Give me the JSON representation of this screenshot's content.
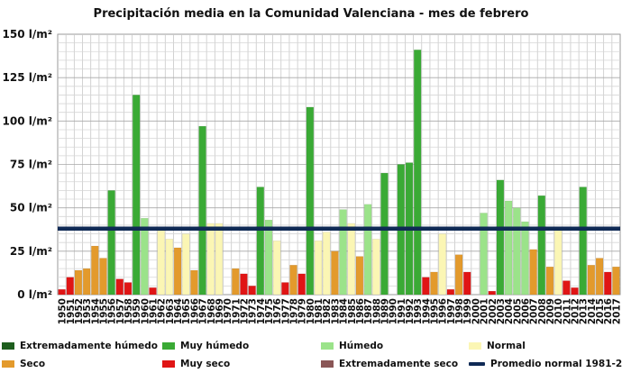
{
  "chart_data": {
    "type": "bar",
    "title": "Precipitación media en la Comunidad Valenciana - mes de febrero",
    "ylim": [
      0,
      150
    ],
    "yticks": [
      0,
      25,
      50,
      75,
      100,
      125,
      150
    ],
    "ytick_labels": [
      "0 l/m²",
      "25 l/m²",
      "50 l/m²",
      "75 l/m²",
      "100 l/m²",
      "125 l/m²",
      "150 l/m²"
    ],
    "grid": true,
    "legend_position": "bottom",
    "categories": [
      "1950",
      "1951",
      "1952",
      "1953",
      "1954",
      "1955",
      "1956",
      "1957",
      "1958",
      "1959",
      "1960",
      "1961",
      "1962",
      "1963",
      "1964",
      "1965",
      "1966",
      "1967",
      "1968",
      "1969",
      "1970",
      "1971",
      "1972",
      "1973",
      "1974",
      "1975",
      "1976",
      "1977",
      "1978",
      "1979",
      "1980",
      "1981",
      "1982",
      "1983",
      "1984",
      "1985",
      "1986",
      "1987",
      "1988",
      "1989",
      "1990",
      "1991",
      "1992",
      "1993",
      "1994",
      "1995",
      "1996",
      "1997",
      "1998",
      "1999",
      "2000",
      "2001",
      "2002",
      "2003",
      "2004",
      "2005",
      "2006",
      "2007",
      "2008",
      "2009",
      "2010",
      "2011",
      "2012",
      "2013",
      "2014",
      "2015",
      "2016",
      "2017"
    ],
    "values": [
      3,
      10,
      14,
      15,
      28,
      21,
      60,
      9,
      7,
      115,
      44,
      4,
      38,
      32,
      27,
      35,
      14,
      97,
      41,
      41,
      0,
      15,
      12,
      5,
      62,
      43,
      31,
      7,
      17,
      12,
      108,
      31,
      36,
      25,
      49,
      41,
      22,
      52,
      32,
      70,
      0,
      75,
      76,
      141,
      10,
      13,
      35,
      3,
      23,
      13,
      0,
      47,
      2,
      66,
      54,
      50,
      42,
      26,
      57,
      16,
      38,
      8,
      4,
      62,
      17,
      21,
      13,
      16
    ],
    "classes": [
      "muy_seco",
      "muy_seco",
      "seco",
      "seco",
      "seco",
      "seco",
      "muy_humedo",
      "muy_seco",
      "muy_seco",
      "muy_humedo",
      "humedo",
      "muy_seco",
      "normal",
      "normal",
      "seco",
      "normal",
      "seco",
      "muy_humedo",
      "normal",
      "normal",
      "muy_seco",
      "seco",
      "muy_seco",
      "muy_seco",
      "muy_humedo",
      "humedo",
      "normal",
      "muy_seco",
      "seco",
      "muy_seco",
      "muy_humedo",
      "normal",
      "normal",
      "seco",
      "humedo",
      "normal",
      "seco",
      "humedo",
      "normal",
      "muy_humedo",
      "muy_seco",
      "muy_humedo",
      "muy_humedo",
      "muy_humedo",
      "muy_seco",
      "seco",
      "normal",
      "muy_seco",
      "seco",
      "muy_seco",
      "muy_seco",
      "humedo",
      "muy_seco",
      "muy_humedo",
      "humedo",
      "humedo",
      "humedo",
      "seco",
      "muy_humedo",
      "seco",
      "normal",
      "muy_seco",
      "muy_seco",
      "muy_humedo",
      "seco",
      "seco",
      "muy_seco",
      "seco"
    ],
    "reference_line": {
      "value": 38,
      "color": "#0f2a55"
    },
    "class_colors": {
      "extremadamente_humedo": "#1e5e1e",
      "muy_humedo": "#3aaa35",
      "humedo": "#9be38a",
      "normal": "#fbf6b4",
      "seco": "#e39a2c",
      "muy_seco": "#e01515",
      "extremadamente_seco": "#8a5656"
    },
    "legend": [
      {
        "label": "Extremadamente húmedo",
        "class": "extremadamente_humedo",
        "kind": "bar"
      },
      {
        "label": "Muy húmedo",
        "class": "muy_humedo",
        "kind": "bar"
      },
      {
        "label": "Húmedo",
        "class": "humedo",
        "kind": "bar"
      },
      {
        "label": "Normal",
        "class": "normal",
        "kind": "bar"
      },
      {
        "label": "Seco",
        "class": "seco",
        "kind": "bar"
      },
      {
        "label": "Muy seco",
        "class": "muy_seco",
        "kind": "bar"
      },
      {
        "label": "Extremadamente seco",
        "class": "extremadamente_seco",
        "kind": "bar"
      },
      {
        "label": "Promedio normal 1981-2010",
        "class": "reference",
        "kind": "line"
      }
    ]
  }
}
